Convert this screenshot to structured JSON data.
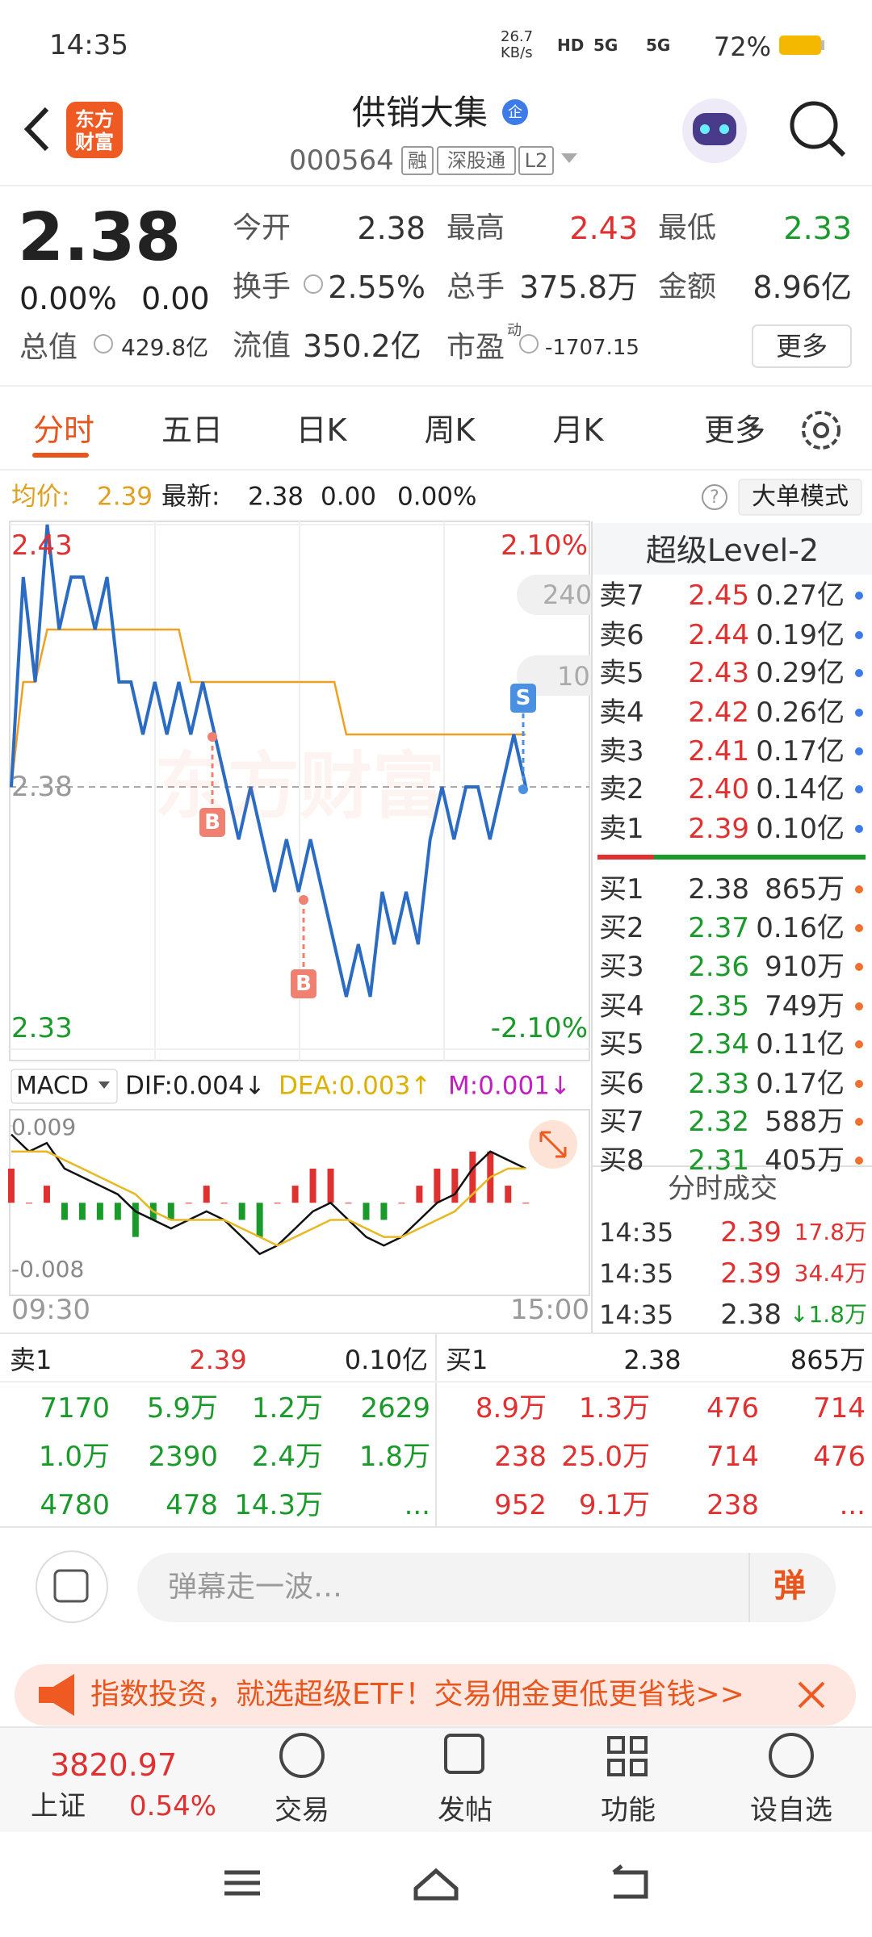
{
  "status_bar": {
    "time": "14:35",
    "net_speed": [
      "26.7",
      "KB/s"
    ],
    "signal": [
      "HD",
      "5G",
      "5G"
    ],
    "battery": "72%"
  },
  "header": {
    "logo": [
      "东方",
      "财富"
    ],
    "title": "供销大集",
    "title_badge": "企",
    "code": "000564",
    "tags": [
      "融",
      "深股通",
      "L2"
    ]
  },
  "quote": {
    "price": "2.38",
    "change_pct": "0.00%",
    "change": "0.00",
    "total_value_label": "总值",
    "total_value": "429.8亿",
    "fields": [
      {
        "label": "今开",
        "value": "2.38"
      },
      {
        "label": "最高",
        "value": "2.43"
      },
      {
        "label": "最低",
        "value": "2.33"
      },
      {
        "label": "换手",
        "value": "2.55%"
      },
      {
        "label": "总手",
        "value": "375.8万"
      },
      {
        "label": "金额",
        "value": "8.96亿"
      },
      {
        "label": "流值",
        "value": "350.2亿"
      }
    ],
    "pe_label": "市盈",
    "pe_sup": "动",
    "pe": "-1707.15",
    "more": "更多"
  },
  "tabs": [
    "分时",
    "五日",
    "日K",
    "周K",
    "月K",
    "更多"
  ],
  "info_bar": {
    "avg_label": "均价:",
    "avg": "2.39",
    "latest_label": "最新:",
    "latest": "2.38",
    "change": "0.00",
    "change_pct": "0.00%",
    "help": "?",
    "mode": "大单模式"
  },
  "chart_data": [
    {
      "type": "line",
      "ylim": [
        2.33,
        2.43
      ],
      "yticks": [
        2.43,
        2.38,
        2.33
      ],
      "y2lim": [
        -2.1,
        2.1
      ],
      "y2ticks": [
        {
          "value": 2.1,
          "label": "2.10%"
        },
        {
          "value": -2.1,
          "label": "-2.10%"
        }
      ],
      "watermark": "东方财富",
      "badges": [
        "240",
        "10"
      ],
      "annotations": [
        "B",
        "B",
        "S"
      ],
      "series": [
        {
          "color": "#2a6bc4",
          "values": [
            2.38,
            2.42,
            2.4,
            2.43,
            2.41,
            2.42,
            2.42,
            2.41,
            2.42,
            2.4,
            2.4,
            2.39,
            2.4,
            2.39,
            2.4,
            2.39,
            2.4,
            2.39,
            2.38,
            2.37,
            2.38,
            2.37,
            2.36,
            2.37,
            2.36,
            2.37,
            2.36,
            2.35,
            2.34,
            2.35,
            2.34,
            2.36,
            2.35,
            2.36,
            2.35,
            2.37,
            2.38,
            2.37,
            2.38,
            2.38,
            2.37,
            2.38,
            2.39,
            2.38
          ]
        },
        {
          "color": "#f0a020",
          "values": [
            2.38,
            2.4,
            2.4,
            2.41,
            2.41,
            2.41,
            2.41,
            2.41,
            2.41,
            2.41,
            2.41,
            2.41,
            2.41,
            2.41,
            2.41,
            2.4,
            2.4,
            2.4,
            2.4,
            2.4,
            2.4,
            2.4,
            2.4,
            2.4,
            2.4,
            2.4,
            2.4,
            2.4,
            2.39,
            2.39,
            2.39,
            2.39,
            2.39,
            2.39,
            2.39,
            2.39,
            2.39,
            2.39,
            2.39,
            2.39,
            2.39,
            2.39,
            2.39,
            2.39
          ]
        }
      ]
    },
    {
      "type": "bar",
      "selector": "MACD",
      "dif_label": "DIF:0.004↓",
      "dea_label": "DEA:0.003↑",
      "m_label": "M:0.001↓",
      "ylim": [
        -0.008,
        0.009
      ],
      "yticks": [
        0.009,
        -0.008
      ],
      "x_labels": [
        "09:30",
        "15:00"
      ],
      "up_color": "#e03030",
      "down_color": "#1a9a2a",
      "bars": [
        0.004,
        0,
        0.002,
        -0.002,
        -0.002,
        -0.002,
        -0.002,
        -0.004,
        -0.002,
        -0.002,
        0,
        0.002,
        0,
        -0.002,
        -0.004,
        0,
        0.002,
        0.004,
        0.004,
        0,
        -0.002,
        -0.002,
        0,
        0.002,
        0.004,
        0.004,
        0.006,
        0.006,
        0.002,
        0
      ],
      "series": [
        {
          "color": "#111111",
          "values": [
            0.008,
            0.006,
            0.007,
            0.004,
            0.003,
            0.002,
            0.001,
            -0.001,
            -0.002,
            -0.003,
            -0.002,
            -0.001,
            -0.002,
            -0.004,
            -0.006,
            -0.005,
            -0.003,
            -0.001,
            0,
            -0.002,
            -0.004,
            -0.005,
            -0.004,
            -0.002,
            0,
            0.001,
            0.004,
            0.006,
            0.005,
            0.004
          ]
        },
        {
          "color": "#e8b820",
          "values": [
            0.006,
            0.006,
            0.006,
            0.005,
            0.004,
            0.003,
            0.002,
            0.001,
            -0.001,
            -0.002,
            -0.002,
            -0.002,
            -0.002,
            -0.003,
            -0.004,
            -0.005,
            -0.004,
            -0.003,
            -0.002,
            -0.002,
            -0.003,
            -0.004,
            -0.004,
            -0.003,
            -0.002,
            -0.001,
            0.001,
            0.003,
            0.004,
            0.004
          ]
        }
      ]
    }
  ],
  "level2": {
    "title": "超级Level-2",
    "asks": [
      {
        "label": "卖7",
        "price": "2.45",
        "volume": "0.27亿"
      },
      {
        "label": "卖6",
        "price": "2.44",
        "volume": "0.19亿"
      },
      {
        "label": "卖5",
        "price": "2.43",
        "volume": "0.29亿"
      },
      {
        "label": "卖4",
        "price": "2.42",
        "volume": "0.26亿"
      },
      {
        "label": "卖3",
        "price": "2.41",
        "volume": "0.17亿"
      },
      {
        "label": "卖2",
        "price": "2.40",
        "volume": "0.14亿"
      },
      {
        "label": "卖1",
        "price": "2.39",
        "volume": "0.10亿"
      }
    ],
    "bids": [
      {
        "label": "买1",
        "price": "2.38",
        "volume": "865万"
      },
      {
        "label": "买2",
        "price": "2.37",
        "volume": "0.16亿"
      },
      {
        "label": "买3",
        "price": "2.36",
        "volume": "910万"
      },
      {
        "label": "买4",
        "price": "2.35",
        "volume": "749万"
      },
      {
        "label": "买5",
        "price": "2.34",
        "volume": "0.11亿"
      },
      {
        "label": "买6",
        "price": "2.33",
        "volume": "0.17亿"
      },
      {
        "label": "买7",
        "price": "2.32",
        "volume": "588万"
      },
      {
        "label": "买8",
        "price": "2.31",
        "volume": "405万"
      }
    ]
  },
  "trades": {
    "title": "分时成交",
    "rows": [
      [
        "14:35",
        "2.39",
        "17.8万"
      ],
      [
        "14:35",
        "2.39",
        "34.4万"
      ],
      [
        "14:35",
        "2.38",
        "↓1.8万"
      ]
    ]
  },
  "order_table": {
    "ask_header": [
      "卖1",
      "2.39",
      "0.10亿"
    ],
    "bid_header": [
      "买1",
      "2.38",
      "865万"
    ],
    "ask_rows": [
      [
        "7170",
        "5.9万",
        "1.2万",
        "2629"
      ],
      [
        "1.0万",
        "2390",
        "2.4万",
        "1.8万"
      ],
      [
        "4780",
        "478",
        "14.3万",
        "..."
      ]
    ],
    "bid_rows": [
      [
        "8.9万",
        "1.3万",
        "476",
        "714"
      ],
      [
        "238",
        "25.0万",
        "714",
        "476"
      ],
      [
        "952",
        "9.1万",
        "238",
        "..."
      ]
    ]
  },
  "comment": {
    "placeholder": "弹幕走一波…",
    "button": "弹"
  },
  "ad": {
    "text": "指数投资，就选超级ETF！交易佣金更低更省钱>>"
  },
  "bottom_nav": {
    "index_value": "3820.97",
    "index_name": "上证",
    "index_change": "0.54%",
    "items": [
      "交易",
      "发帖",
      "功能",
      "设自选"
    ]
  }
}
